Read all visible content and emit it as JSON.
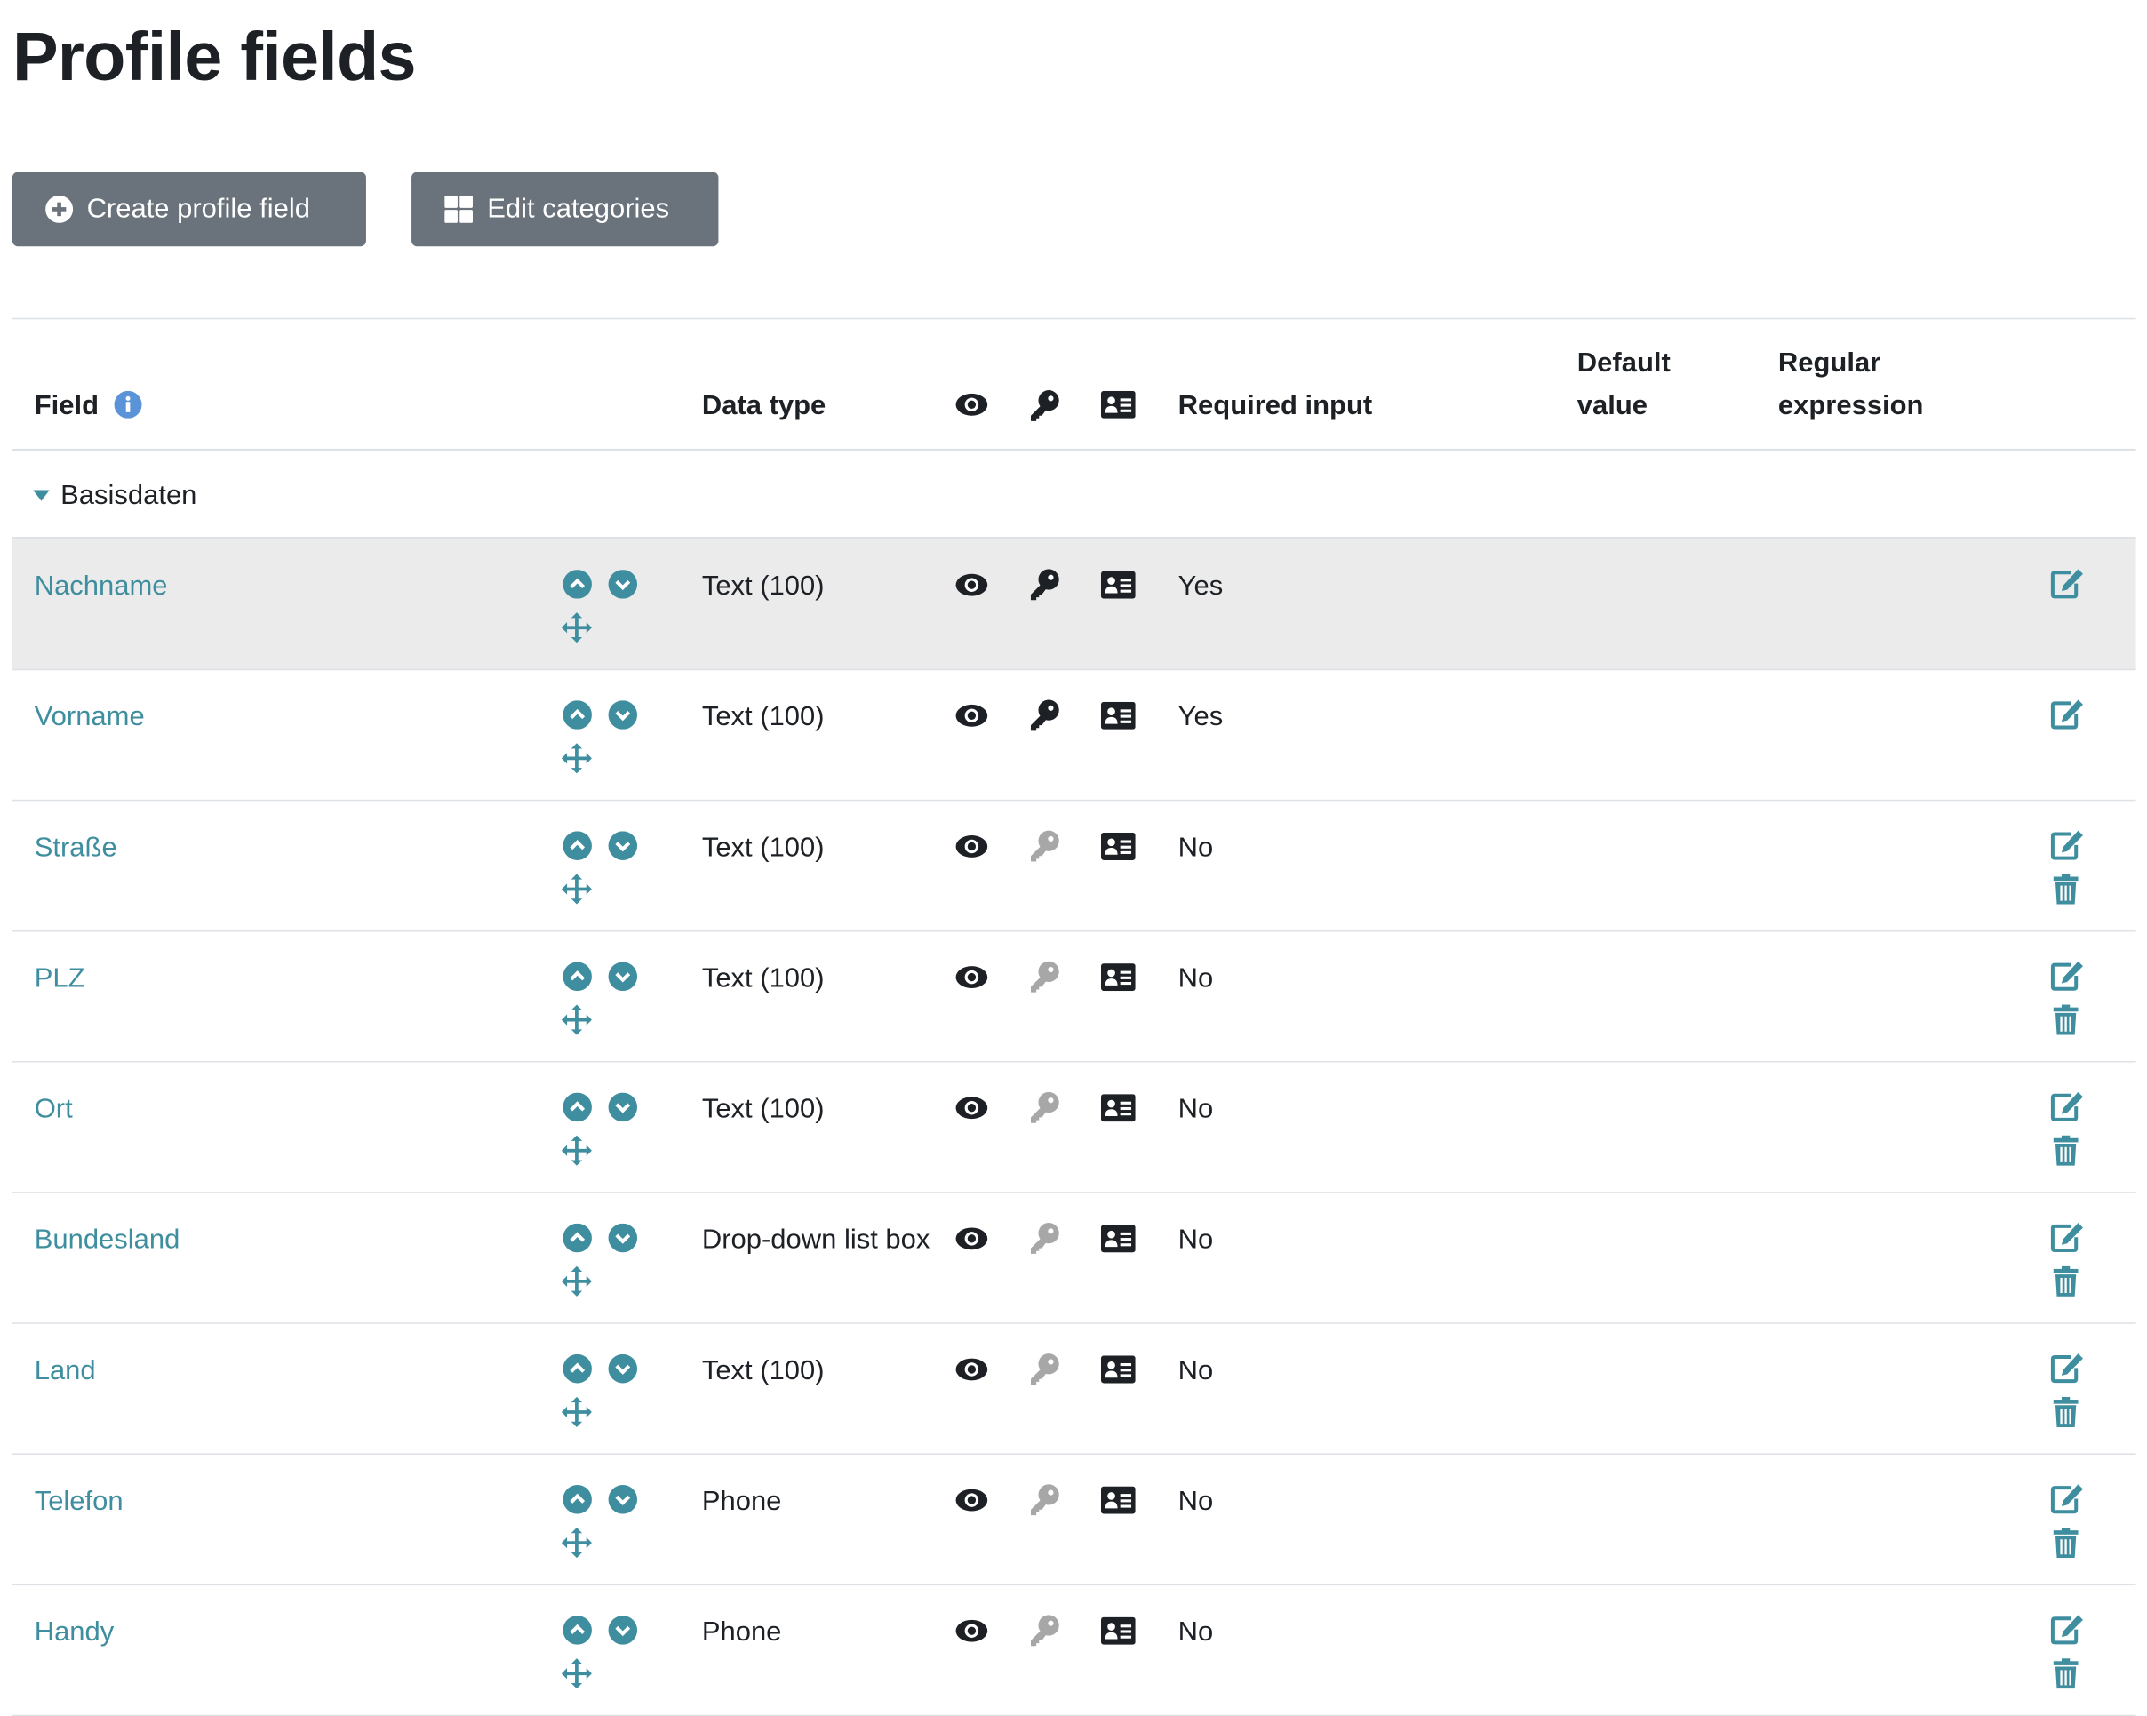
{
  "page": {
    "title": "Profile fields"
  },
  "toolbar": {
    "create_label": "Create profile field",
    "create_icon": "plus-circle-icon",
    "edit_categories_label": "Edit categories",
    "edit_categories_icon": "grid-icon"
  },
  "table": {
    "headers": {
      "field": "Field",
      "field_info_icon": "info-icon",
      "data_type": "Data type",
      "visible_icon": "eye-icon",
      "locked_icon": "key-icon",
      "signup_icon": "id-card-icon",
      "required": "Required input",
      "default_line1": "Default",
      "default_line2": "value",
      "regex_line1": "Regular",
      "regex_line2": "expression"
    },
    "category": {
      "name": "Basisdaten",
      "expanded": true
    },
    "rows": [
      {
        "name": "Nachname",
        "type": "Text (100)",
        "key_active": true,
        "required": "Yes",
        "deletable": false,
        "highlighted": true
      },
      {
        "name": "Vorname",
        "type": "Text (100)",
        "key_active": true,
        "required": "Yes",
        "deletable": false
      },
      {
        "name": "Straße",
        "type": "Text (100)",
        "key_active": false,
        "required": "No",
        "deletable": true
      },
      {
        "name": "PLZ",
        "type": "Text (100)",
        "key_active": false,
        "required": "No",
        "deletable": true
      },
      {
        "name": "Ort",
        "type": "Text (100)",
        "key_active": false,
        "required": "No",
        "deletable": true
      },
      {
        "name": "Bundesland",
        "type": "Drop-down list box",
        "key_active": false,
        "required": "No",
        "deletable": true
      },
      {
        "name": "Land",
        "type": "Text (100)",
        "key_active": false,
        "required": "No",
        "deletable": true
      },
      {
        "name": "Telefon",
        "type": "Phone",
        "key_active": false,
        "required": "No",
        "deletable": true
      },
      {
        "name": "Handy",
        "type": "Phone",
        "key_active": false,
        "required": "No",
        "deletable": true
      }
    ]
  },
  "colors": {
    "accent": "#3f8e9f",
    "button": "#6a737b",
    "info": "#5b93d8",
    "key_inactive": "#a7a7a7",
    "highlight_row": "#ebebeb"
  }
}
